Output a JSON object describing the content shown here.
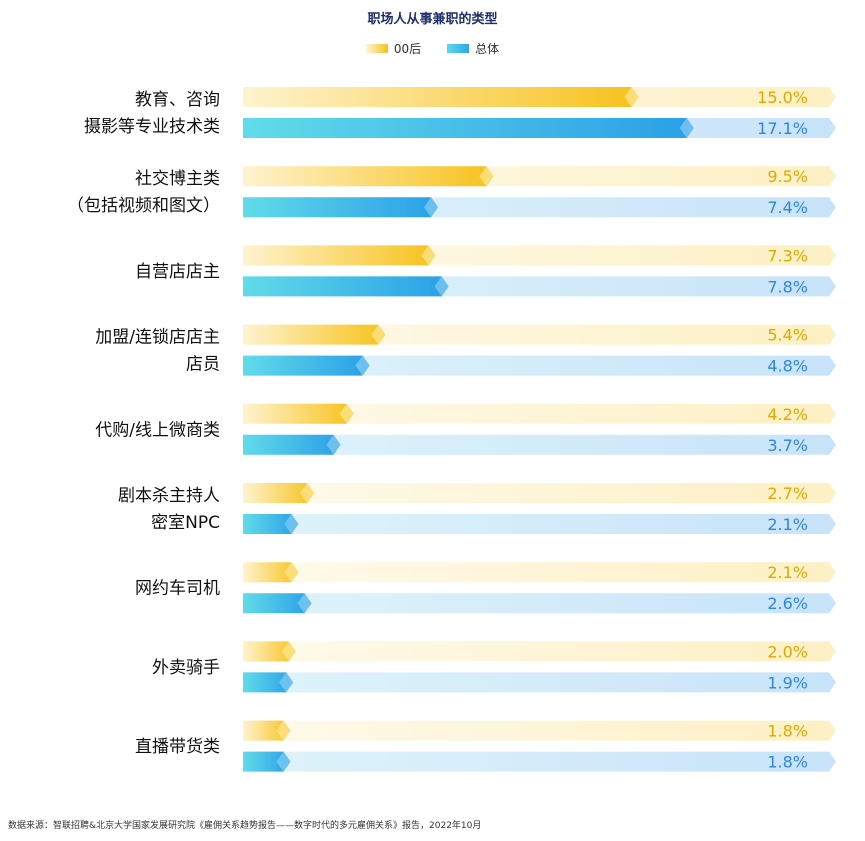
{
  "chart_data": {
    "type": "bar",
    "title": "职场人从事兼职的类型",
    "categories": [
      [
        "教育、咨询",
        "摄影等专业技术类"
      ],
      [
        "社交博主类",
        "（包括视频和图文）"
      ],
      [
        "自营店店主"
      ],
      [
        "加盟/连锁店店主",
        "店员"
      ],
      [
        "代购/线上微商类"
      ],
      [
        "剧本杀主持人",
        "密室NPC"
      ],
      [
        "网约车司机"
      ],
      [
        "外卖骑手"
      ],
      [
        "直播带货类"
      ]
    ],
    "series": [
      {
        "name": "00后",
        "values": [
          15.0,
          9.5,
          7.3,
          5.4,
          4.2,
          2.7,
          2.1,
          2.0,
          1.8
        ],
        "value_labels": [
          "15.0%",
          "9.5%",
          "7.3%",
          "5.4%",
          "4.2%",
          "2.7%",
          "2.1%",
          "2.0%",
          "1.8%"
        ],
        "color": "#f7c21c",
        "track_color": "#fdf3cf"
      },
      {
        "name": "总体",
        "values": [
          17.1,
          7.4,
          7.8,
          4.8,
          3.7,
          2.1,
          2.6,
          1.9,
          1.8
        ],
        "value_labels": [
          "17.1%",
          "7.4%",
          "7.8%",
          "4.8%",
          "3.7%",
          "2.1%",
          "2.6%",
          "1.9%",
          "1.8%"
        ],
        "color": "#2ea7ea",
        "track_color": "#cfe8f8"
      }
    ],
    "xlim": [
      0,
      22.5
    ],
    "legend_position": "top-center",
    "grid": false
  },
  "source_text": "数据来源：智联招聘&北京大学国家发展研究院《雇佣关系趋势报告——数字时代的多元雇佣关系》报告，2022年10月"
}
